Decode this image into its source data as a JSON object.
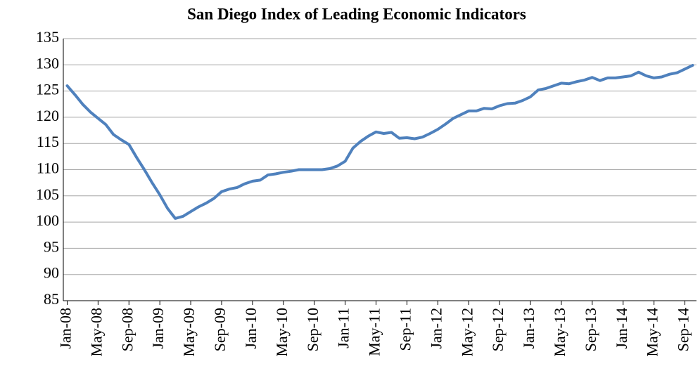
{
  "chart_data": {
    "type": "line",
    "title": "San Diego Index of Leading Economic Indicators",
    "categories": [
      "Jan-08",
      null,
      null,
      null,
      "May-08",
      null,
      null,
      null,
      "Sep-08",
      null,
      null,
      null,
      "Jan-09",
      null,
      null,
      null,
      "May-09",
      null,
      null,
      null,
      "Sep-09",
      null,
      null,
      null,
      "Jan-10",
      null,
      null,
      null,
      "May-10",
      null,
      null,
      null,
      "Sep-10",
      null,
      null,
      null,
      "Jan-11",
      null,
      null,
      null,
      "May-11",
      null,
      null,
      null,
      "Sep-11",
      null,
      null,
      null,
      "Jan-12",
      null,
      null,
      null,
      "May-12",
      null,
      null,
      null,
      "Sep-12",
      null,
      null,
      null,
      "Jan-13",
      null,
      null,
      null,
      "May-13",
      null,
      null,
      null,
      "Sep-13",
      null,
      null,
      null,
      "Jan-14",
      null,
      null,
      null,
      "May-14",
      null,
      null,
      null,
      "Sep-14",
      null
    ],
    "values": [
      126,
      124.3,
      122.5,
      121,
      119.8,
      118.6,
      116.7,
      115.7,
      114.8,
      112.3,
      110,
      107.5,
      105.2,
      102.6,
      100.7,
      101.1,
      102,
      102.9,
      103.6,
      104.5,
      105.8,
      106.3,
      106.6,
      107.3,
      107.8,
      108,
      109,
      109.2,
      109.5,
      109.7,
      110,
      110,
      110,
      110,
      110.2,
      110.7,
      111.6,
      114.1,
      115.4,
      116.4,
      117.2,
      116.9,
      117.1,
      116,
      116.1,
      115.9,
      116.2,
      116.9,
      117.7,
      118.7,
      119.8,
      120.5,
      121.2,
      121.2,
      121.7,
      121.6,
      122.2,
      122.6,
      122.7,
      123.2,
      123.9,
      125.2,
      125.5,
      126,
      126.5,
      126.4,
      126.8,
      127.1,
      127.6,
      127,
      127.5,
      127.5,
      127.7,
      127.9,
      128.6,
      127.9,
      127.5,
      127.7,
      128.2,
      128.5,
      129.2,
      129.9
    ],
    "color": "#4f81bd",
    "ylim": [
      85,
      135
    ],
    "yticks": [
      85,
      90,
      95,
      100,
      105,
      110,
      115,
      120,
      125,
      130,
      135
    ],
    "grid": true
  }
}
